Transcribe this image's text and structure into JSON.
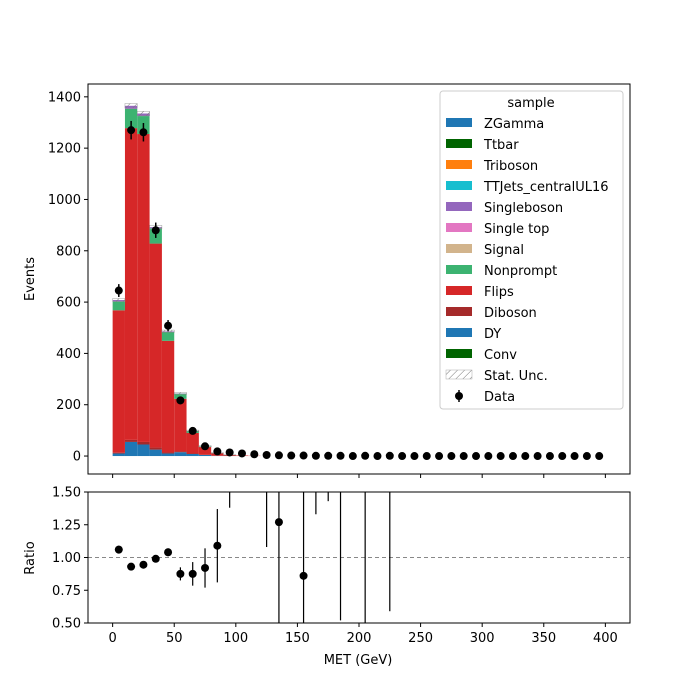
{
  "chart_data": {
    "type": "bar",
    "stacked": true,
    "histogram": true,
    "xlabel": "MET (GeV)",
    "x_ticks": [
      "0",
      "50",
      "100",
      "150",
      "200",
      "250",
      "300",
      "350",
      "400"
    ],
    "bin_edges": [
      0,
      10,
      20,
      30,
      40,
      50,
      60,
      70,
      80,
      90,
      100,
      110,
      120,
      130,
      140,
      150,
      160,
      170,
      180,
      190,
      200,
      210,
      220,
      230,
      240,
      250,
      260,
      270,
      280,
      290,
      300,
      310,
      320,
      330,
      340,
      350,
      360,
      370,
      380,
      390,
      400
    ],
    "main": {
      "ylabel": "Events",
      "ylim": [
        -70,
        1450
      ],
      "y_ticks": [
        "0",
        "200",
        "400",
        "600",
        "800",
        "1000",
        "1200",
        "1400"
      ],
      "legend_title": "sample",
      "legend_position": "top-right",
      "legend": [
        {
          "name": "ZGamma",
          "color": "#1f77b4",
          "kind": "patch"
        },
        {
          "name": "Ttbar",
          "color": "#006400",
          "kind": "patch"
        },
        {
          "name": "Triboson",
          "color": "#ff7f0e",
          "kind": "patch"
        },
        {
          "name": "TTJets_centralUL16",
          "color": "#17becf",
          "kind": "patch"
        },
        {
          "name": "Singleboson",
          "color": "#9467bd",
          "kind": "patch"
        },
        {
          "name": "Single top",
          "color": "#e377c2",
          "kind": "patch"
        },
        {
          "name": "Signal",
          "color": "#d2b48c",
          "kind": "patch"
        },
        {
          "name": "Nonprompt",
          "color": "#3cb371",
          "kind": "patch"
        },
        {
          "name": "Flips",
          "color": "#d62728",
          "kind": "patch"
        },
        {
          "name": "Diboson",
          "color": "#a52a2a",
          "kind": "patch"
        },
        {
          "name": "DY",
          "color": "#1f77b4",
          "kind": "patch"
        },
        {
          "name": "Conv",
          "color": "#006400",
          "kind": "patch"
        },
        {
          "name": "Stat. Unc.",
          "color": "#888888",
          "kind": "hatch"
        },
        {
          "name": "Data",
          "color": "#000000",
          "kind": "errorbar"
        }
      ],
      "stack_series": [
        {
          "name": "DY",
          "color": "#1f77b4",
          "values": [
            10,
            55,
            45,
            25,
            10,
            15,
            8,
            4,
            1,
            0,
            0,
            0,
            0,
            0,
            0,
            0,
            0,
            0,
            0,
            0,
            0,
            0,
            0,
            0,
            0,
            0,
            0,
            0,
            0,
            0,
            0,
            0,
            0,
            0,
            0,
            0,
            0,
            0,
            0,
            0
          ]
        },
        {
          "name": "Diboson",
          "color": "#a52a2a",
          "values": [
            3,
            8,
            10,
            8,
            4,
            3,
            2,
            1,
            0,
            0,
            0,
            0,
            0,
            0,
            0,
            0,
            0,
            0,
            0,
            0,
            0,
            0,
            0,
            0,
            0,
            0,
            0,
            0,
            0,
            0,
            0,
            0,
            0,
            0,
            0,
            0,
            0,
            0,
            0,
            0
          ]
        },
        {
          "name": "Flips",
          "color": "#d62728",
          "values": [
            555,
            1215,
            1200,
            795,
            435,
            205,
            80,
            30,
            10,
            4,
            2,
            1,
            0,
            0,
            0,
            0,
            0,
            0,
            0,
            0,
            0,
            0,
            0,
            0,
            0,
            0,
            0,
            0,
            0,
            0,
            0,
            0,
            0,
            0,
            0,
            0,
            0,
            0,
            0,
            0
          ]
        },
        {
          "name": "Nonprompt",
          "color": "#3cb371",
          "values": [
            35,
            75,
            70,
            60,
            35,
            20,
            8,
            3,
            1,
            0,
            0,
            0,
            0,
            0,
            0,
            0,
            0,
            0,
            0,
            0,
            0,
            0,
            0,
            0,
            0,
            0,
            0,
            0,
            0,
            0,
            0,
            0,
            0,
            0,
            0,
            0,
            0,
            0,
            0,
            0
          ]
        },
        {
          "name": "Singleboson",
          "color": "#9467bd",
          "values": [
            5,
            12,
            10,
            4,
            2,
            1,
            0,
            0,
            0,
            0,
            0,
            0,
            0,
            0,
            0,
            0,
            0,
            0,
            0,
            0,
            0,
            0,
            0,
            0,
            0,
            0,
            0,
            0,
            0,
            0,
            0,
            0,
            0,
            0,
            0,
            0,
            0,
            0,
            0,
            0
          ]
        }
      ],
      "stat_unc": [
        6,
        9,
        9,
        7,
        5,
        4,
        3,
        2,
        1,
        1,
        0,
        0,
        0,
        0,
        0,
        0,
        0,
        0,
        0,
        0,
        0,
        0,
        0,
        0,
        0,
        0,
        0,
        0,
        0,
        0,
        0,
        0,
        0,
        0,
        0,
        0,
        0,
        0,
        0,
        0
      ],
      "data": [
        {
          "x": 5,
          "y": 645,
          "err": 25
        },
        {
          "x": 15,
          "y": 1270,
          "err": 36
        },
        {
          "x": 25,
          "y": 1262,
          "err": 36
        },
        {
          "x": 35,
          "y": 880,
          "err": 30
        },
        {
          "x": 45,
          "y": 508,
          "err": 22
        },
        {
          "x": 55,
          "y": 217,
          "err": 15
        },
        {
          "x": 65,
          "y": 98,
          "err": 10
        },
        {
          "x": 75,
          "y": 38,
          "err": 6
        },
        {
          "x": 85,
          "y": 18,
          "err": 4
        },
        {
          "x": 95,
          "y": 14,
          "err": 3
        },
        {
          "x": 105,
          "y": 10,
          "err": 3
        },
        {
          "x": 115,
          "y": 7,
          "err": 2
        },
        {
          "x": 125,
          "y": 4,
          "err": 2
        },
        {
          "x": 135,
          "y": 3,
          "err": 2
        },
        {
          "x": 145,
          "y": 2,
          "err": 1
        },
        {
          "x": 155,
          "y": 2,
          "err": 1
        },
        {
          "x": 165,
          "y": 1,
          "err": 1
        },
        {
          "x": 175,
          "y": 1,
          "err": 1
        },
        {
          "x": 185,
          "y": 1,
          "err": 1
        },
        {
          "x": 195,
          "y": 0,
          "err": 0
        },
        {
          "x": 205,
          "y": 1,
          "err": 1
        },
        {
          "x": 215,
          "y": 0,
          "err": 0
        },
        {
          "x": 225,
          "y": 1,
          "err": 1
        },
        {
          "x": 235,
          "y": 0,
          "err": 0
        },
        {
          "x": 245,
          "y": 0,
          "err": 0
        },
        {
          "x": 255,
          "y": 0,
          "err": 0
        },
        {
          "x": 265,
          "y": 0,
          "err": 0
        },
        {
          "x": 275,
          "y": 0,
          "err": 0
        },
        {
          "x": 285,
          "y": 0,
          "err": 0
        },
        {
          "x": 295,
          "y": 0,
          "err": 0
        },
        {
          "x": 305,
          "y": 0,
          "err": 0
        },
        {
          "x": 315,
          "y": 0,
          "err": 0
        },
        {
          "x": 325,
          "y": 0,
          "err": 0
        },
        {
          "x": 335,
          "y": 0,
          "err": 0
        },
        {
          "x": 345,
          "y": 0,
          "err": 0
        },
        {
          "x": 355,
          "y": 0,
          "err": 0
        },
        {
          "x": 365,
          "y": 0,
          "err": 0
        },
        {
          "x": 375,
          "y": 0,
          "err": 0
        },
        {
          "x": 385,
          "y": 0,
          "err": 0
        },
        {
          "x": 395,
          "y": 0,
          "err": 0
        }
      ]
    },
    "ratio": {
      "ylabel": "Ratio",
      "ylim": [
        0.5,
        1.5
      ],
      "y_ticks": [
        "0.50",
        "0.75",
        "1.00",
        "1.25",
        "1.50"
      ],
      "reference_line": 1.0,
      "points": [
        {
          "x": 5,
          "y": 1.06,
          "err": 0.03
        },
        {
          "x": 15,
          "y": 0.93,
          "err": 0.01
        },
        {
          "x": 25,
          "y": 0.945,
          "err": 0.01
        },
        {
          "x": 35,
          "y": 0.99,
          "err": 0.02
        },
        {
          "x": 45,
          "y": 1.04,
          "err": 0.03
        },
        {
          "x": 55,
          "y": 0.875,
          "err": 0.05
        },
        {
          "x": 65,
          "y": 0.875,
          "err": 0.09
        },
        {
          "x": 75,
          "y": 0.92,
          "err": 0.15
        },
        {
          "x": 85,
          "y": 1.09,
          "err": 0.28
        }
      ],
      "error_only": [
        {
          "x": 95,
          "y0": 1.38,
          "y1": 1.5
        },
        {
          "x": 125,
          "y0": 1.08,
          "y1": 1.5
        },
        {
          "x": 135,
          "y0": 0.5,
          "y1": 1.5
        },
        {
          "x": 155,
          "y0": 0.5,
          "y1": 1.5
        },
        {
          "x": 165,
          "y0": 1.33,
          "y1": 1.5
        },
        {
          "x": 175,
          "y0": 1.43,
          "y1": 1.5
        },
        {
          "x": 185,
          "y0": 0.52,
          "y1": 1.5
        },
        {
          "x": 205,
          "y0": 0.5,
          "y1": 1.5
        },
        {
          "x": 225,
          "y0": 0.59,
          "y1": 1.5
        }
      ],
      "extra_points": [
        {
          "x": 135,
          "y": 1.27
        },
        {
          "x": 155,
          "y": 0.86
        }
      ]
    }
  }
}
